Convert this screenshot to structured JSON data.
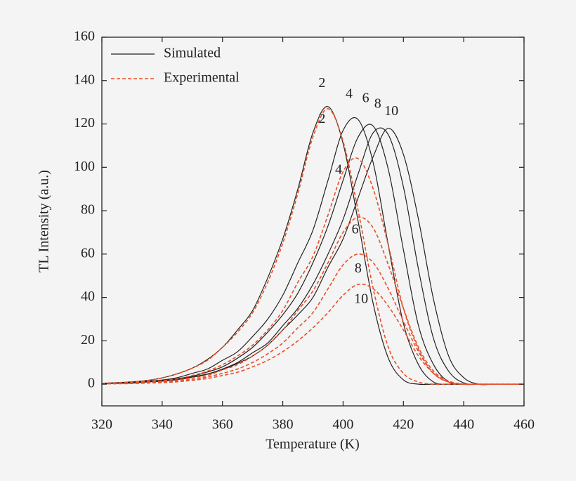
{
  "chart_data": {
    "type": "line",
    "xlabel": "Temperature (K)",
    "ylabel": "TL Intensity (a.u.)",
    "x": [
      320,
      325,
      330,
      335,
      340,
      345,
      350,
      355,
      360,
      365,
      370,
      375,
      380,
      385,
      390,
      395,
      400,
      405,
      410,
      415,
      420,
      425,
      430,
      435,
      440,
      445,
      450,
      455,
      460
    ],
    "xlim": [
      320,
      460
    ],
    "xticks": [
      320,
      340,
      360,
      380,
      400,
      420,
      440,
      460
    ],
    "ylim": [
      -10,
      160
    ],
    "yticks": [
      0,
      20,
      40,
      60,
      80,
      100,
      120,
      140,
      160
    ],
    "legend": [
      {
        "name": "Simulated",
        "color": "#222222",
        "dash": false
      },
      {
        "name": "Experimental",
        "color": "#e8502a",
        "dash": true
      }
    ],
    "series": [
      {
        "color": "#222222",
        "dash": false,
        "values": [
          0.4,
          0.7,
          1.1,
          1.7,
          2.9,
          4.8,
          7.4,
          11.4,
          17,
          25,
          34,
          49,
          67,
          90,
          116,
          128,
          111,
          75,
          37,
          12,
          2,
          0,
          0,
          0,
          0,
          0,
          0,
          0,
          0
        ]
      },
      {
        "color": "#222222",
        "dash": false,
        "values": [
          0.4,
          0.6,
          0.9,
          1.4,
          1.9,
          3,
          5,
          7,
          11,
          15,
          22,
          30,
          41,
          56,
          71,
          94,
          117,
          122,
          102,
          64,
          28,
          9,
          1,
          0,
          0,
          0,
          0,
          0,
          0
        ]
      },
      {
        "color": "#222222",
        "dash": false,
        "values": [
          0.4,
          0.5,
          0.7,
          1.1,
          1.6,
          2.5,
          3.7,
          5.6,
          8,
          12,
          17,
          24,
          32,
          42,
          56,
          73,
          94,
          114,
          119,
          99,
          62,
          27,
          9,
          1,
          0,
          0,
          0,
          0,
          0
        ]
      },
      {
        "color": "#222222",
        "dash": false,
        "values": [
          0.4,
          0.5,
          0.6,
          1.1,
          1.5,
          2.2,
          3.4,
          4.7,
          7,
          10,
          14.5,
          19,
          27,
          35,
          46,
          60,
          76,
          97,
          116,
          115,
          91,
          53,
          21,
          6,
          0.6,
          0,
          0,
          0,
          0
        ]
      },
      {
        "color": "#222222",
        "dash": false,
        "values": [
          0.3,
          0.4,
          0.5,
          1,
          1.4,
          2.1,
          3.2,
          4.6,
          6.7,
          9.6,
          13,
          18,
          25,
          32,
          40,
          54,
          67,
          86,
          105,
          118,
          106,
          76,
          39,
          13,
          3,
          0,
          0,
          0,
          0
        ]
      },
      {
        "color": "#e8502a",
        "dash": true,
        "values": [
          0.4,
          0.7,
          1.1,
          1.7,
          2.9,
          4.8,
          7.4,
          11,
          17,
          24,
          33,
          47,
          65,
          88,
          114,
          127,
          112,
          80,
          44,
          17,
          5,
          1,
          0,
          0,
          0,
          0,
          0,
          0,
          0
        ]
      },
      {
        "color": "#e8502a",
        "dash": true,
        "values": [
          0.3,
          0.5,
          0.8,
          1.2,
          1.6,
          2.5,
          4,
          6,
          9,
          13,
          18,
          25,
          34,
          47,
          59,
          78,
          98,
          104,
          90,
          64,
          35,
          16,
          5,
          1,
          0,
          0,
          0,
          0,
          0
        ]
      },
      {
        "color": "#e8502a",
        "dash": true,
        "values": [
          0.2,
          0.4,
          0.5,
          0.8,
          1.1,
          1.8,
          3,
          4,
          6.6,
          9,
          13,
          18,
          25,
          34,
          43,
          56,
          70,
          77,
          72,
          55,
          35,
          17,
          6,
          1.5,
          0,
          0,
          0,
          0,
          0
        ]
      },
      {
        "color": "#e8502a",
        "dash": true,
        "values": [
          0.2,
          0.3,
          0.4,
          0.7,
          0.9,
          1.4,
          2.3,
          3.3,
          5,
          7,
          10,
          14,
          19,
          26,
          33,
          44,
          55,
          60,
          56,
          44,
          29,
          15,
          5,
          1,
          0,
          0,
          0,
          0,
          0
        ]
      },
      {
        "color": "#e8502a",
        "dash": true,
        "values": [
          0.2,
          0.2,
          0.3,
          0.5,
          0.7,
          1.1,
          1.8,
          2.6,
          4,
          5.5,
          8,
          11,
          15,
          20,
          26,
          33,
          41,
          46,
          44,
          36,
          25,
          13,
          5,
          1,
          0,
          0,
          0,
          0,
          0
        ]
      }
    ],
    "annotations": [
      {
        "text": "2",
        "x": 393,
        "y": 138.5
      },
      {
        "text": "4",
        "x": 402,
        "y": 133.5
      },
      {
        "text": "6",
        "x": 407.5,
        "y": 131.5
      },
      {
        "text": "8",
        "x": 411.5,
        "y": 129
      },
      {
        "text": "10",
        "x": 416,
        "y": 125.5
      },
      {
        "text": "2",
        "x": 393,
        "y": 122
      },
      {
        "text": "4",
        "x": 398.5,
        "y": 98.5
      },
      {
        "text": "6",
        "x": 404,
        "y": 71
      },
      {
        "text": "8",
        "x": 405,
        "y": 53
      },
      {
        "text": "10",
        "x": 406,
        "y": 39
      }
    ]
  }
}
